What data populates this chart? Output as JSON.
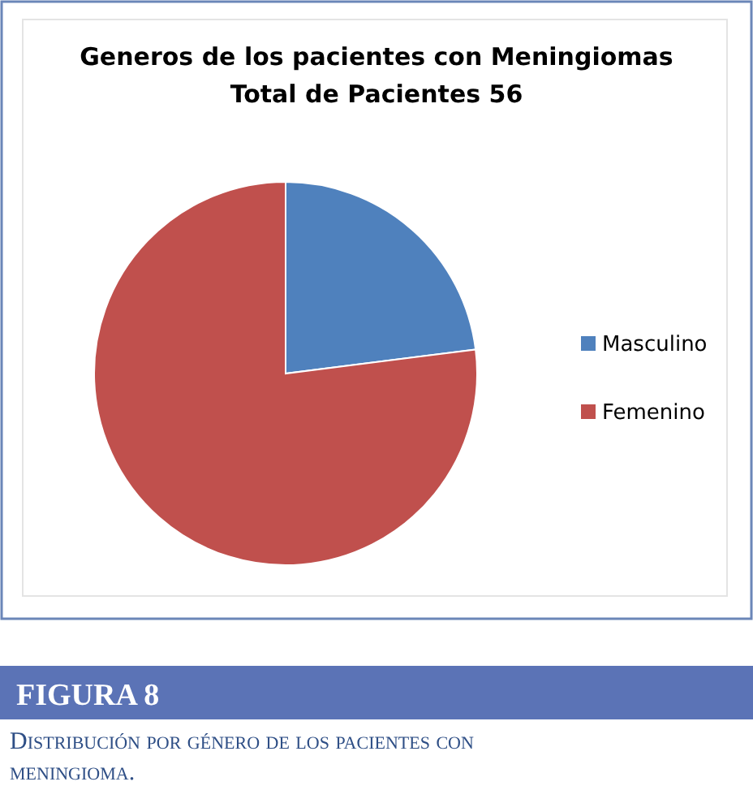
{
  "chart_data": {
    "type": "pie",
    "title": "Generos de los pacientes con Meningiomas",
    "subtitle": "Total de Pacientes 56",
    "categories": [
      "Masculino",
      "Femenino"
    ],
    "values": [
      23,
      77
    ],
    "colors": [
      "#4f81bd",
      "#c0504d"
    ],
    "legend": "right",
    "annotations": [
      "FIGURA 8",
      "Distribución por género de los pacientes con meningioma."
    ]
  }
}
